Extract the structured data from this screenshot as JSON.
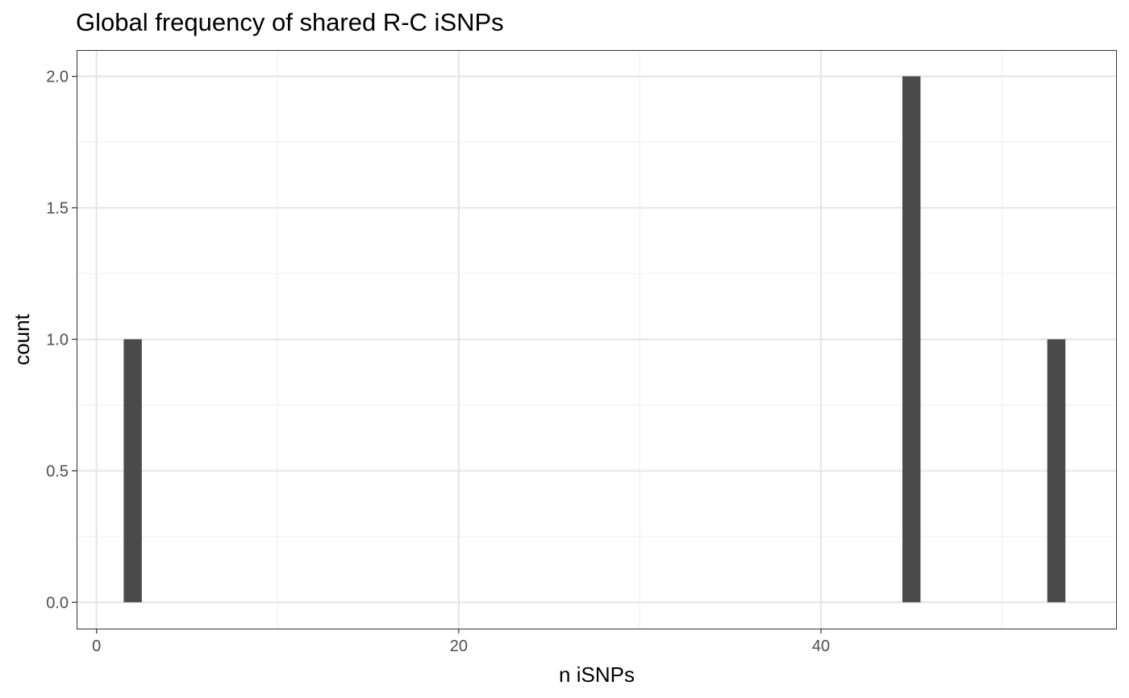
{
  "chart_data": {
    "type": "bar",
    "title": "Global frequency of shared R-C iSNPs",
    "xlabel": "n iSNPs",
    "ylabel": "count",
    "xlim": [
      -1.1,
      56.3
    ],
    "ylim": [
      -0.1,
      2.1
    ],
    "x_ticks": [
      0,
      20,
      40
    ],
    "x_tick_labels": [
      "0",
      "20",
      "40"
    ],
    "x_minor_ticks": [
      10,
      30,
      50
    ],
    "y_ticks": [
      0,
      0.5,
      1,
      1.5,
      2
    ],
    "y_tick_labels": [
      "0.0",
      "0.5",
      "1.0",
      "1.5",
      "2.0"
    ],
    "y_minor_ticks": [
      0.25,
      0.75,
      1.25,
      1.75
    ],
    "bin_width": 1,
    "bars": [
      {
        "x": 2,
        "count": 1
      },
      {
        "x": 45,
        "count": 2
      },
      {
        "x": 53,
        "count": 1
      }
    ],
    "grid": true,
    "bar_color": "#4a4a4a",
    "grid_major_color": "#e6e6e6",
    "grid_minor_color": "#f0f0f0",
    "panel_border_color": "#333333"
  }
}
